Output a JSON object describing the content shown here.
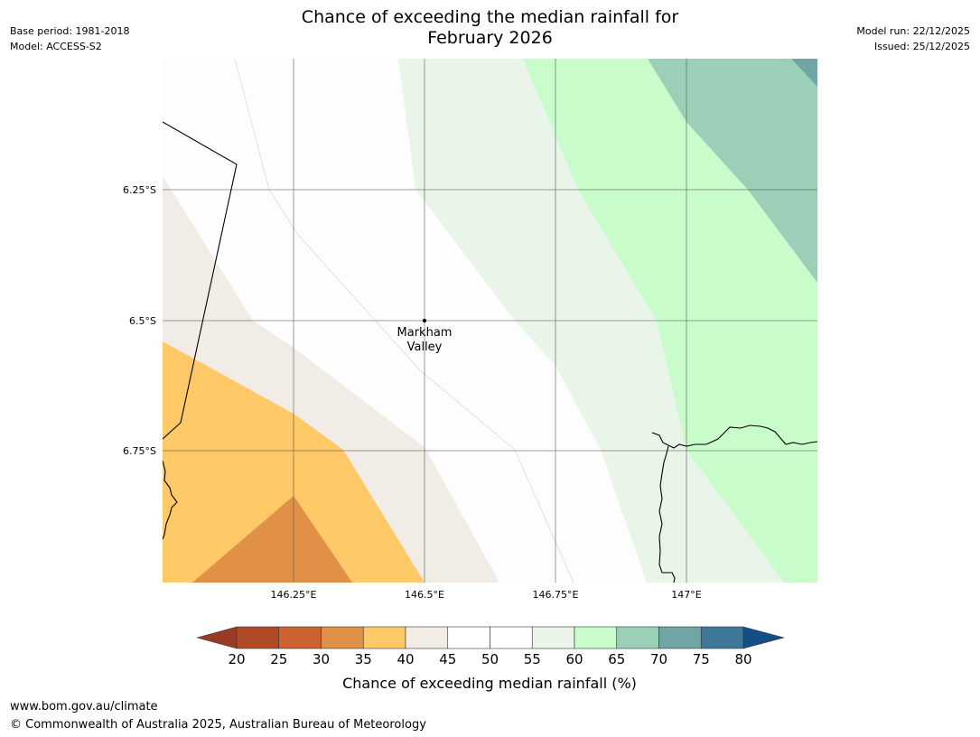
{
  "header": {
    "title_line1": "Chance of exceeding the median rainfall for",
    "title_line2": "February 2026",
    "base_period": "Base period: 1981-2018",
    "model": "Model: ACCESS-S2",
    "model_run": "Model run: 22/12/2025",
    "issued": "Issued: 25/12/2025"
  },
  "map": {
    "lat_labels": [
      "6.25°S",
      "6.5°S",
      "6.75°S"
    ],
    "lon_labels": [
      "146.25°E",
      "146.5°E",
      "146.75°E",
      "147°E"
    ],
    "place": {
      "name_line1": "Markham",
      "name_line2": "Valley"
    },
    "zone_colors": {
      "35-40": "#fec966",
      "30-35": "#e09147",
      "40-45": "#f1ece5",
      "45-55": "#fdfdfd",
      "55-60": "#e9f5e9",
      "60-65": "#c8fccb",
      "65-70": "#9bcfb8",
      "70-75": "#70a5a5"
    }
  },
  "colorbar": {
    "title": "Chance of exceeding median rainfall (%)",
    "ticks": [
      "20",
      "25",
      "30",
      "35",
      "40",
      "45",
      "50",
      "55",
      "60",
      "65",
      "70",
      "75",
      "80"
    ],
    "under_color": "#9a3b25",
    "over_color": "#154d87",
    "colors": [
      "#b04a26",
      "#cc6331",
      "#e09147",
      "#fec966",
      "#f1ece5",
      "#ffffff",
      "#ffffff",
      "#e9f5e9",
      "#c8fccb",
      "#9bcfb8",
      "#70a5a5",
      "#3d7899"
    ]
  },
  "footer": {
    "url": "www.bom.gov.au/climate",
    "copyright": "© Commonwealth of Australia 2025, Australian Bureau of Meteorology"
  }
}
